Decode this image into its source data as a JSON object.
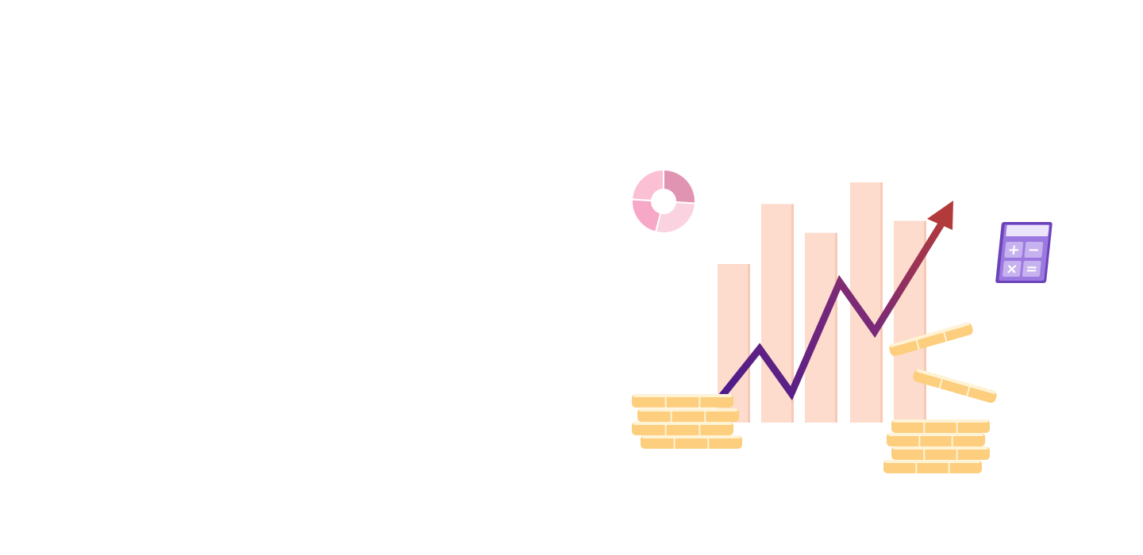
{
  "illustration": {
    "icons": [
      "donut-chart-icon",
      "calculator-icon",
      "coin-icon",
      "trend-arrow-icon"
    ],
    "bars": [
      {
        "name": "bar-1",
        "relative_height": 0.66
      },
      {
        "name": "bar-2",
        "relative_height": 0.91
      },
      {
        "name": "bar-3",
        "relative_height": 0.79
      },
      {
        "name": "bar-4",
        "relative_height": 1.0
      },
      {
        "name": "bar-5",
        "relative_height": 0.84
      }
    ],
    "donut_segments": [
      0.26,
      0.28,
      0.22,
      0.24
    ],
    "calculator_keys": [
      "+",
      "−",
      "×",
      "="
    ],
    "colors": {
      "bar": "#fddccd",
      "bar_shadow": "#f7c9b7",
      "coin": "#fcce7e",
      "coin_highlight": "#fff3d6",
      "trend_start": "#4a1a8c",
      "trend_end": "#b23a3a",
      "donut_a": "#e193b2",
      "donut_b": "#fbd2df",
      "donut_c": "#f7a8c6",
      "donut_d": "#fcc0d4",
      "calculator_body": "#6b43b8",
      "calculator_face": "#9c79e0"
    }
  }
}
